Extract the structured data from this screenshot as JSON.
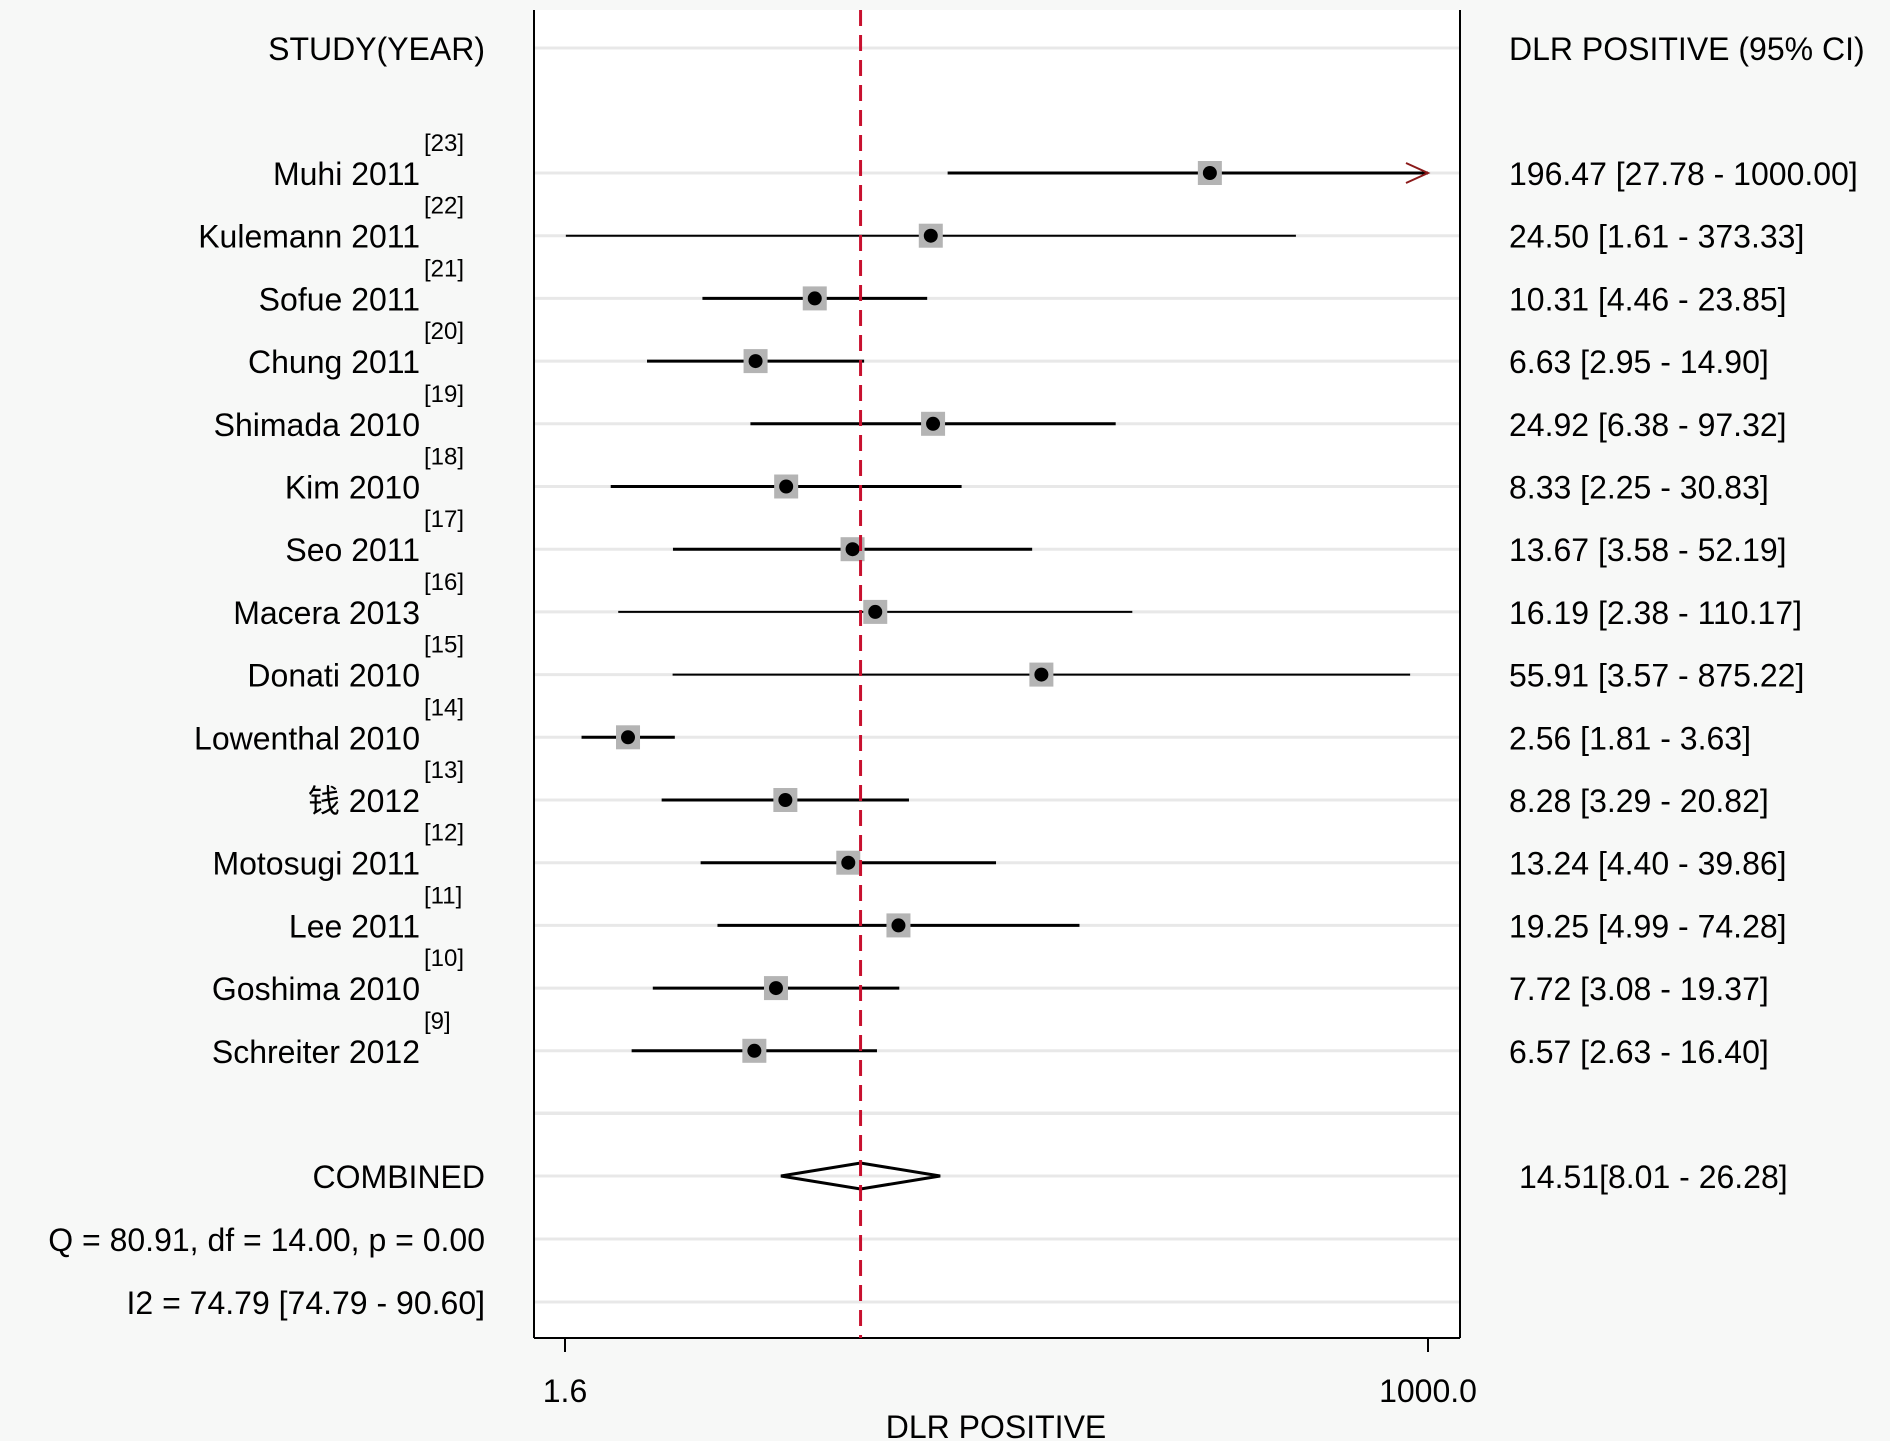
{
  "chart_data": {
    "type": "forest",
    "left_header": "STUDY(YEAR)",
    "right_header": "DLR POSITIVE (95% CI)",
    "xlabel": "DLR POSITIVE",
    "x_scale": "log",
    "xlim": [
      1.6,
      1000.0
    ],
    "x_ticks": [
      "1.6",
      "1000.0"
    ],
    "reference_line": 14.51,
    "grid": true,
    "studies": [
      {
        "name": "Muhi",
        "year": "2011",
        "ref": "[23]",
        "est": 196.47,
        "lo": 27.78,
        "hi": 1000.0,
        "ci_text": "196.47 [27.78 - 1000.00]",
        "truncated": true
      },
      {
        "name": "Kulemann",
        "year": "2011",
        "ref": "[22]",
        "est": 24.5,
        "lo": 1.61,
        "hi": 373.33,
        "ci_text": "24.50 [1.61 - 373.33]"
      },
      {
        "name": "Sofue",
        "year": "2011",
        "ref": "[21]",
        "est": 10.31,
        "lo": 4.46,
        "hi": 23.85,
        "ci_text": "10.31 [4.46 - 23.85]"
      },
      {
        "name": "Chung",
        "year": "2011",
        "ref": "[20]",
        "est": 6.63,
        "lo": 2.95,
        "hi": 14.9,
        "ci_text": "6.63 [2.95 - 14.90]"
      },
      {
        "name": "Shimada",
        "year": "2010",
        "ref": "[19]",
        "est": 24.92,
        "lo": 6.38,
        "hi": 97.32,
        "ci_text": "24.92 [6.38 - 97.32]"
      },
      {
        "name": "Kim",
        "year": "2010",
        "ref": "[18]",
        "est": 8.33,
        "lo": 2.25,
        "hi": 30.83,
        "ci_text": "8.33 [2.25 - 30.83]"
      },
      {
        "name": "Seo",
        "year": "2011",
        "ref": "[17]",
        "est": 13.67,
        "lo": 3.58,
        "hi": 52.19,
        "ci_text": "13.67 [3.58 - 52.19]"
      },
      {
        "name": "Macera",
        "year": "2013",
        "ref": "[16]",
        "est": 16.19,
        "lo": 2.38,
        "hi": 110.17,
        "ci_text": "16.19 [2.38 - 110.17]"
      },
      {
        "name": "Donati",
        "year": "2010",
        "ref": "[15]",
        "est": 55.91,
        "lo": 3.57,
        "hi": 875.22,
        "ci_text": "55.91 [3.57 - 875.22]"
      },
      {
        "name": "Lowenthal",
        "year": "2010",
        "ref": "[14]",
        "est": 2.56,
        "lo": 1.81,
        "hi": 3.63,
        "ci_text": "2.56 [1.81 - 3.63]"
      },
      {
        "name": "钱",
        "year": "2012",
        "ref": "[13]",
        "est": 8.28,
        "lo": 3.29,
        "hi": 20.82,
        "ci_text": "8.28 [3.29 - 20.82]"
      },
      {
        "name": "Motosugi",
        "year": "2011",
        "ref": "[12]",
        "est": 13.24,
        "lo": 4.4,
        "hi": 39.86,
        "ci_text": "13.24 [4.40 - 39.86]"
      },
      {
        "name": "Lee",
        "year": "2011",
        "ref": "[11]",
        "est": 19.25,
        "lo": 4.99,
        "hi": 74.28,
        "ci_text": "19.25 [4.99 - 74.28]"
      },
      {
        "name": "Goshima",
        "year": "2010",
        "ref": "[10]",
        "est": 7.72,
        "lo": 3.08,
        "hi": 19.37,
        "ci_text": "7.72 [3.08 - 19.37]"
      },
      {
        "name": "Schreiter",
        "year": "2012",
        "ref": "[9]",
        "est": 6.57,
        "lo": 2.63,
        "hi": 16.4,
        "ci_text": "6.57 [2.63 - 16.40]"
      }
    ],
    "combined": {
      "label": "COMBINED",
      "est": 14.51,
      "lo": 8.01,
      "hi": 26.28,
      "ci_text": "14.51[8.01 - 26.28]"
    },
    "heterogeneity": {
      "q_text": "Q = 80.91, df = 14.00, p =  0.00",
      "i2_text": "I2 = 74.79 [74.79 - 90.60]"
    },
    "colors": {
      "reference_line": "#c8102e",
      "arrow": "#8b1a1a",
      "box": "#b4b4b4",
      "grid": "#e8e8e8",
      "background": "#f7f8f7",
      "panel": "#ffffff"
    }
  }
}
